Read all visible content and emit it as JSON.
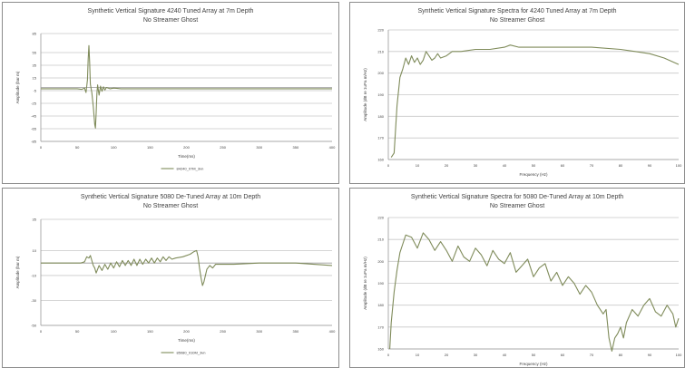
{
  "chart_data": [
    {
      "type": "line",
      "title": "Synthetic Vertical Signature 4240 Tuned Array at 7m Depth",
      "subtitle": "No Streamer Ghost",
      "xlabel": "Time(ms)",
      "ylabel": "Amplitude (bar m)",
      "xlim": [
        0,
        400
      ],
      "ylim": [
        -85,
        85
      ],
      "xticks": [
        0,
        50,
        100,
        150,
        200,
        250,
        300,
        350,
        400
      ],
      "xtick_labels": [
        "0",
        "50",
        "100",
        "150",
        "200",
        "250",
        "300",
        "350",
        "400"
      ],
      "yticks": [
        -85,
        -65,
        -45,
        -25,
        -5,
        15,
        35,
        55,
        85
      ],
      "ytick_labels": [
        "-85",
        "-65",
        "-45",
        "-25",
        "-5",
        "15",
        "35",
        "55",
        "85"
      ],
      "grid": true,
      "legend": "bottom",
      "colors": {
        "series": "#7f8b5a"
      },
      "series": [
        {
          "name": "84240_07M_3vn",
          "x": [
            0,
            50,
            56,
            60,
            62,
            64,
            65,
            66,
            67,
            68,
            70,
            72,
            74,
            75,
            76,
            77,
            78,
            80,
            82,
            84,
            86,
            88,
            90,
            95,
            100,
            110,
            150,
            200,
            250,
            300,
            350,
            400
          ],
          "y": [
            -2,
            -2,
            -3,
            -1,
            -8,
            12,
            45,
            66,
            40,
            5,
            -8,
            -30,
            -58,
            -64,
            -40,
            -10,
            4,
            -12,
            2,
            -6,
            1,
            -4,
            0,
            -2,
            -1,
            -2,
            -2,
            -2,
            -2,
            -2,
            -2,
            -2
          ]
        }
      ]
    },
    {
      "type": "line",
      "title": "Synthetic Vertical Signature Spectra for 4240 Tuned Array at 7m Depth",
      "subtitle": "No Streamer Ghost",
      "xlabel": "Frequency (Hz)",
      "ylabel": "Amplitude (dB re 1uPa m/Hz)",
      "xlim": [
        0,
        100
      ],
      "ylim": [
        160,
        220
      ],
      "xticks": [
        0,
        10,
        20,
        30,
        40,
        50,
        60,
        70,
        80,
        90,
        100
      ],
      "xtick_labels": [
        "0",
        "10",
        "20",
        "30",
        "40",
        "50",
        "60",
        "70",
        "80",
        "90",
        "100"
      ],
      "yticks": [
        160,
        170,
        180,
        190,
        200,
        210,
        220
      ],
      "ytick_labels": [
        "160",
        "170",
        "180",
        "190",
        "200",
        "210",
        "220"
      ],
      "grid": true,
      "colors": {
        "series": "#7f8b5a"
      },
      "series": [
        {
          "x": [
            1,
            2,
            3,
            4,
            5,
            6,
            7,
            8,
            9,
            10,
            11,
            12,
            13,
            14,
            15,
            16,
            17,
            18,
            20,
            22,
            25,
            30,
            35,
            40,
            42,
            45,
            50,
            55,
            60,
            70,
            80,
            85,
            90,
            95,
            100
          ],
          "y": [
            161,
            163,
            185,
            198,
            202,
            207,
            204,
            208,
            205,
            207,
            204,
            206,
            210,
            208,
            206,
            207,
            209,
            207,
            208,
            210,
            210,
            211,
            211,
            212,
            213,
            212,
            212,
            212,
            212,
            212,
            211,
            210,
            209,
            207,
            204
          ]
        }
      ]
    },
    {
      "type": "line",
      "title": "Synthetic Vertical Signature 5080 De-Tuned Array at 10m Depth",
      "subtitle": "No Streamer Ghost",
      "xlabel": "Time(ms)",
      "ylabel": "Amplitude (bar m)",
      "xlim": [
        0,
        400
      ],
      "ylim": [
        -50,
        35
      ],
      "xticks": [
        0,
        50,
        100,
        150,
        200,
        250,
        300,
        350,
        400
      ],
      "xtick_labels": [
        "0",
        "50",
        "100",
        "150",
        "200",
        "250",
        "300",
        "350",
        "400"
      ],
      "yticks": [
        -50,
        -30,
        -10,
        10,
        35
      ],
      "ytick_labels": [
        "-50",
        "-30",
        "-10",
        "10",
        "35"
      ],
      "grid": true,
      "legend": "bottom",
      "colors": {
        "series": "#7f8b5a"
      },
      "series": [
        {
          "name": "85080_010M_3vn",
          "x": [
            0,
            40,
            55,
            60,
            63,
            66,
            68,
            70,
            72,
            74,
            76,
            78,
            80,
            84,
            88,
            92,
            96,
            100,
            104,
            108,
            112,
            116,
            120,
            124,
            128,
            132,
            136,
            140,
            144,
            148,
            152,
            156,
            160,
            164,
            168,
            172,
            176,
            180,
            185,
            195,
            205,
            210,
            214,
            216,
            218,
            220,
            222,
            224,
            228,
            232,
            236,
            240,
            250,
            265,
            300,
            350,
            400
          ],
          "y": [
            0,
            0,
            0,
            1,
            5,
            4,
            6,
            2,
            -2,
            -4,
            -8,
            -5,
            -2,
            -6,
            -1,
            -5,
            0,
            -4,
            1,
            -3,
            2,
            -2,
            2,
            -2,
            3,
            -2,
            3,
            -1,
            3,
            0,
            4,
            0,
            4,
            1,
            5,
            2,
            5,
            3,
            4,
            5,
            7,
            9,
            10,
            5,
            -4,
            -12,
            -18,
            -15,
            -5,
            -2,
            -4,
            -1,
            -1,
            -1,
            0,
            0,
            -2
          ]
        }
      ]
    },
    {
      "type": "line",
      "title": "Synthetic Vertical Signature Spectra for 5080 De-Tuned Array at 10m Depth",
      "subtitle": "No Streamer Ghost",
      "xlabel": "Frequency (Hz)",
      "ylabel": "Amplitude (dB re 1uPa m/Hz)",
      "xlim": [
        0,
        100
      ],
      "ylim": [
        160,
        220
      ],
      "xticks": [
        0,
        10,
        20,
        30,
        40,
        50,
        60,
        70,
        80,
        90,
        100
      ],
      "xtick_labels": [
        "0",
        "10",
        "20",
        "30",
        "40",
        "50",
        "60",
        "70",
        "80",
        "90",
        "100"
      ],
      "yticks": [
        160,
        170,
        180,
        190,
        200,
        210,
        220
      ],
      "ytick_labels": [
        "160",
        "170",
        "180",
        "190",
        "200",
        "210",
        "220"
      ],
      "grid": true,
      "colors": {
        "series": "#7f8b5a"
      },
      "series": [
        {
          "x": [
            0.5,
            1,
            2,
            3,
            4,
            5,
            6,
            8,
            10,
            12,
            14,
            16,
            18,
            20,
            22,
            24,
            26,
            28,
            30,
            32,
            34,
            36,
            38,
            40,
            42,
            44,
            46,
            48,
            50,
            52,
            54,
            56,
            58,
            60,
            62,
            64,
            66,
            68,
            70,
            72,
            74,
            75,
            76,
            77,
            78,
            79,
            80,
            81,
            82,
            84,
            86,
            88,
            90,
            92,
            94,
            96,
            98,
            99,
            100
          ],
          "y": [
            160,
            172,
            186,
            196,
            204,
            208,
            212,
            211,
            206,
            213,
            210,
            205,
            209,
            205,
            200,
            207,
            202,
            200,
            206,
            203,
            198,
            205,
            201,
            199,
            204,
            195,
            198,
            201,
            193,
            197,
            199,
            191,
            195,
            189,
            193,
            190,
            185,
            189,
            186,
            180,
            176,
            178,
            165,
            159,
            165,
            167,
            170,
            165,
            172,
            178,
            175,
            180,
            183,
            177,
            175,
            180,
            176,
            170,
            174
          ]
        }
      ]
    }
  ]
}
